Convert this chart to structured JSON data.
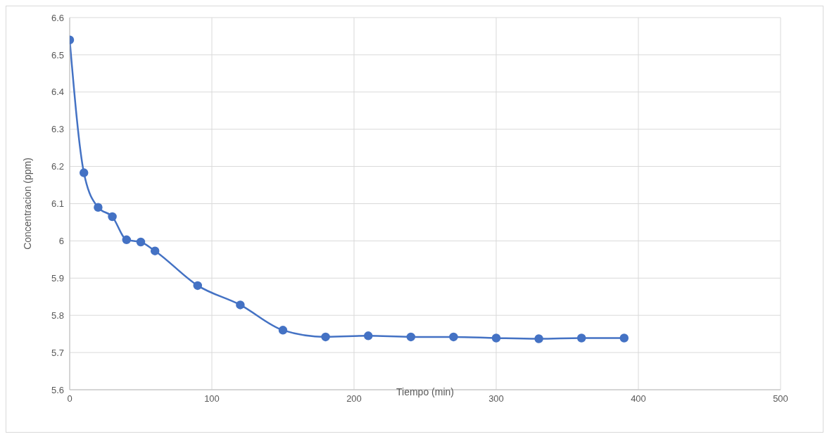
{
  "chart_data": {
    "type": "line",
    "xlabel": "Tiempo (min)",
    "ylabel": "Concentracion (ppm)",
    "x": [
      0,
      10,
      20,
      30,
      40,
      50,
      60,
      90,
      120,
      150,
      180,
      210,
      240,
      270,
      300,
      330,
      360,
      390
    ],
    "series": [
      {
        "color": "#4472c4",
        "values": [
          6.54,
          6.183,
          6.09,
          6.065,
          6.003,
          5.997,
          5.973,
          5.88,
          5.828,
          5.76,
          5.742,
          5.745,
          5.742,
          5.742,
          5.739,
          5.737,
          5.739,
          5.739
        ]
      }
    ],
    "xlim": [
      0,
      500
    ],
    "xticks": [
      0,
      100,
      200,
      300,
      400,
      500
    ],
    "ylim": [
      5.6,
      6.6
    ],
    "yticks": [
      5.6,
      5.7,
      5.8,
      5.9,
      6,
      6.1,
      6.2,
      6.3,
      6.4,
      6.5,
      6.6
    ],
    "grid": true,
    "marker": "circle",
    "line_style": "solid"
  }
}
